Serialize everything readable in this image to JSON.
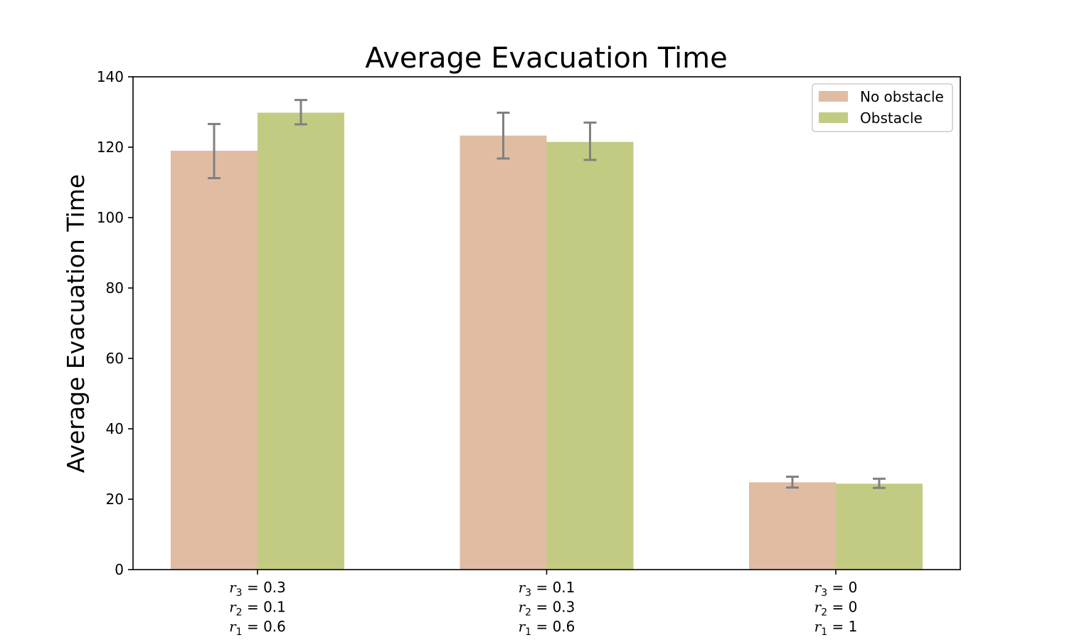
{
  "chart_data": {
    "type": "bar",
    "title": "Average Evacuation Time",
    "xlabel": "",
    "ylabel": "Average Evacuation Time",
    "ylim": [
      0,
      140
    ],
    "yticks": [
      0,
      20,
      40,
      60,
      80,
      100,
      120,
      140
    ],
    "grid": false,
    "legend_position": "top-right",
    "categories": [
      [
        {
          "var": "r",
          "sub": "3",
          "val": "0.3"
        },
        {
          "var": "r",
          "sub": "2",
          "val": "0.1"
        },
        {
          "var": "r",
          "sub": "1",
          "val": "0.6"
        }
      ],
      [
        {
          "var": "r",
          "sub": "3",
          "val": "0.1"
        },
        {
          "var": "r",
          "sub": "2",
          "val": "0.3"
        },
        {
          "var": "r",
          "sub": "1",
          "val": "0.6"
        }
      ],
      [
        {
          "var": "r",
          "sub": "3",
          "val": "0"
        },
        {
          "var": "r",
          "sub": "2",
          "val": "0"
        },
        {
          "var": "r",
          "sub": "1",
          "val": "1"
        }
      ]
    ],
    "series": [
      {
        "name": "No obstacle",
        "color": "#e0bca3",
        "values": [
          119.0,
          123.3,
          24.8
        ],
        "error_low": [
          111.2,
          116.8,
          23.3
        ],
        "error_high": [
          126.6,
          129.8,
          26.4
        ]
      },
      {
        "name": "Obstacle",
        "color": "#c3cb82",
        "values": [
          129.8,
          121.5,
          24.4
        ],
        "error_low": [
          126.5,
          116.4,
          23.2
        ],
        "error_high": [
          133.4,
          127.0,
          25.8
        ]
      }
    ],
    "error_bar_color": "#808080"
  }
}
